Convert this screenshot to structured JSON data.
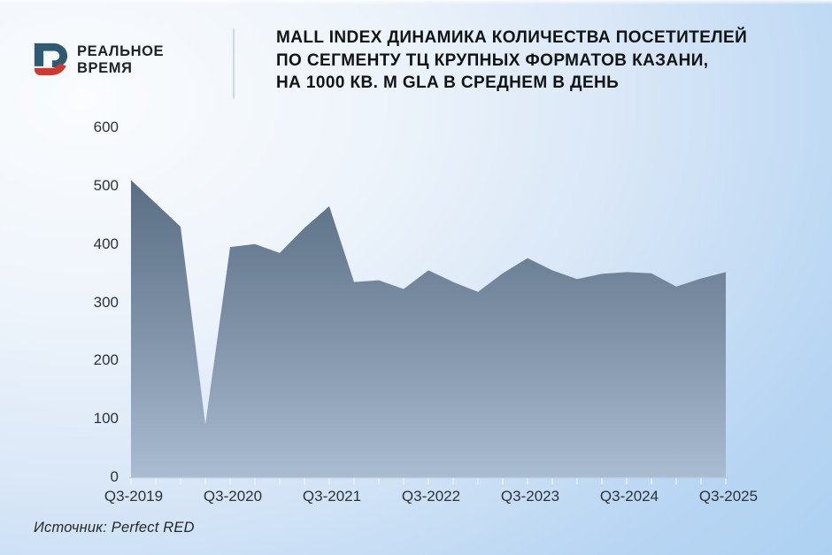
{
  "brand": {
    "icon": "realnoe-vremya-logo-icon",
    "name_line1": "РЕАЛЬНОЕ",
    "name_line2": "ВРЕМЯ"
  },
  "header": {
    "title_lines": {
      "line1": "MALL INDEX ДИНАМИКА КОЛИЧЕСТВА ПОСЕТИТЕЛЕЙ",
      "line2": "ПО СЕГМЕНТУ ТЦ КРУПНЫХ ФОРМАТОВ КАЗАНИ,",
      "line3": "НА 1000 КВ. М GLA В СРЕДНЕМ В ДЕНЬ"
    }
  },
  "footer": {
    "source_text": "Источник:  Perfect RED"
  },
  "colors": {
    "logo_blue": "#2e5a73",
    "logo_red": "#d0392e",
    "area_fill_top": "#596d83",
    "area_fill_bottom": "#a9bcd2",
    "background_light": "#fafcfe",
    "background_blue": "#a4cdf1",
    "axis_baseline": "#b8c4d2",
    "axis_tick": "#f0f5fb",
    "text_dark": "#101314"
  },
  "chart_data": {
    "type": "area",
    "title": "MALL INDEX динамика количества посетителей по сегменту ТЦ крупных форматов Казани, на 1000 кв. м GLA в среднем в день",
    "source": "Perfect RED",
    "xlabel": "",
    "ylabel": "",
    "ylim": [
      0,
      600
    ],
    "grid": false,
    "legend": "none",
    "x": [
      "Q3-2019",
      "Q4-2019",
      "Q1-2020",
      "Q2-2020",
      "Q3-2020",
      "Q4-2020",
      "Q1-2021",
      "Q2-2021",
      "Q3-2021",
      "Q4-2021",
      "Q1-2022",
      "Q2-2022",
      "Q3-2022",
      "Q4-2022",
      "Q1-2023",
      "Q2-2023",
      "Q3-2023",
      "Q4-2023",
      "Q1-2024",
      "Q2-2024",
      "Q3-2024",
      "Q4-2024",
      "Q1-2025",
      "Q2-2025",
      "Q3-2025"
    ],
    "values": [
      510,
      470,
      430,
      90,
      395,
      400,
      385,
      428,
      465,
      335,
      338,
      323,
      355,
      335,
      318,
      350,
      376,
      355,
      340,
      349,
      352,
      350,
      327,
      341,
      352
    ],
    "y_ticks": [
      0,
      100,
      200,
      300,
      400,
      500,
      600
    ],
    "x_tick_labels": [
      "Q3-2019",
      "Q3-2020",
      "Q3-2021",
      "Q3-2022",
      "Q3-2023",
      "Q3-2024",
      "Q3-2025"
    ]
  }
}
